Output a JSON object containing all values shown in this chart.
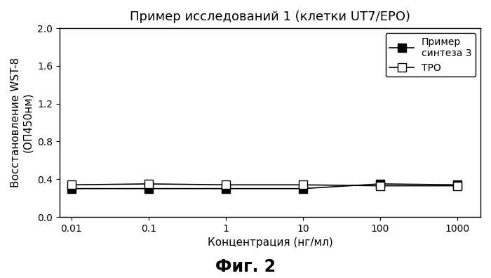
{
  "title": "Пример исследований 1 (клетки UT7/EPO)",
  "xlabel": "Концентрация (нг/мл)",
  "ylabel_line1": "Восстановление WST-8",
  "ylabel_line2": "(ОП450нм)",
  "x_values": [
    0.01,
    0.1,
    1,
    10,
    100,
    1000
  ],
  "series1_label": "Пример\nсинтеза 3",
  "series1_y": [
    0.3,
    0.3,
    0.3,
    0.3,
    0.35,
    0.34
  ],
  "series1_marker": "s",
  "series2_label": "ТРО",
  "series2_y": [
    0.34,
    0.35,
    0.34,
    0.34,
    0.33,
    0.33
  ],
  "series2_marker": "s",
  "ylim": [
    0.0,
    2.0
  ],
  "yticks": [
    0.0,
    0.4,
    0.8,
    1.2,
    1.6,
    2.0
  ],
  "line_color": "#000000",
  "fill_color": "#000000",
  "empty_color": "#ffffff",
  "fig_caption": "Фиг. 2",
  "background_color": "#ffffff",
  "title_fontsize": 13,
  "axis_fontsize": 11,
  "tick_fontsize": 10,
  "legend_fontsize": 10,
  "caption_fontsize": 17
}
